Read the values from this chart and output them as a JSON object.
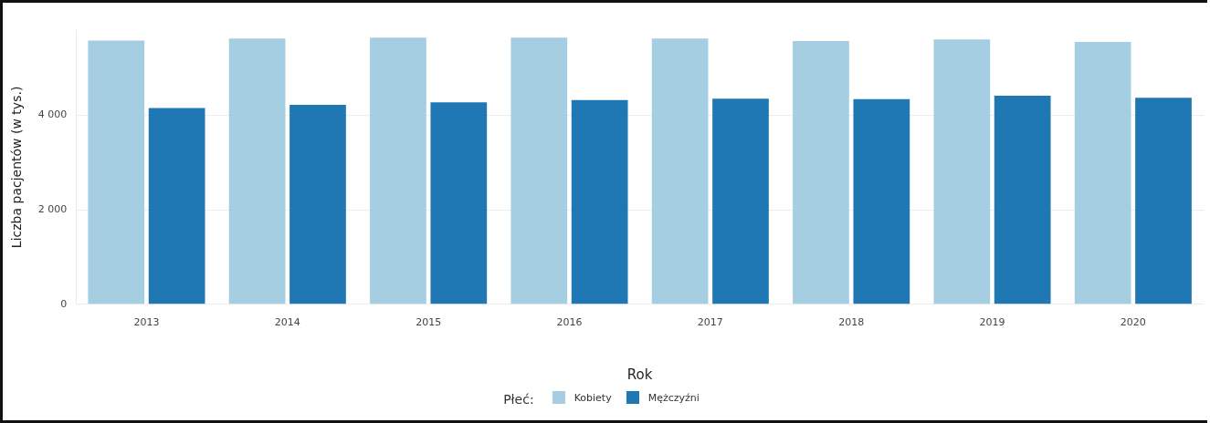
{
  "chart_data": {
    "type": "bar",
    "xlabel": "Rok",
    "ylabel": "Liczba pacjentów (w tys.)",
    "legend_title": "Płeć:",
    "categories": [
      "2013",
      "2014",
      "2015",
      "2016",
      "2017",
      "2018",
      "2019",
      "2020"
    ],
    "series": [
      {
        "name": "Kobiety",
        "color": "#a6cee3",
        "values": [
          5580,
          5620,
          5640,
          5640,
          5620,
          5570,
          5600,
          5550
        ]
      },
      {
        "name": "Mężczyźni",
        "color": "#1f78b4",
        "values": [
          4150,
          4220,
          4270,
          4320,
          4350,
          4340,
          4410,
          4370
        ]
      }
    ],
    "ylim": [
      0,
      5800
    ],
    "yticks": [
      {
        "value": 0,
        "label": "0"
      },
      {
        "value": 2000,
        "label": "2 000"
      },
      {
        "value": 4000,
        "label": "4 000"
      }
    ],
    "grid": "y",
    "legend": "bottom"
  }
}
